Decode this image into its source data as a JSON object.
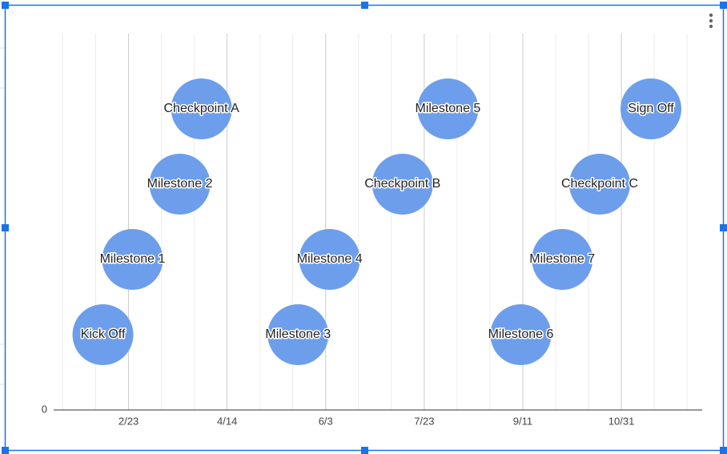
{
  "chart_data": {
    "type": "bubble",
    "x": [
      41,
      56,
      80,
      91,
      140,
      156,
      193,
      216,
      253,
      274,
      293,
      319
    ],
    "values": [
      1,
      2,
      3,
      4,
      1,
      2,
      3,
      4,
      1,
      2,
      3,
      4
    ],
    "labels": [
      "Kick Off",
      "Milestone 1",
      "Milestone 2",
      "Checkpoint A",
      "Milestone 3",
      "Milestone 4",
      "Checkpoint B",
      "Milestone 5",
      "Milestone 6",
      "Milestone 7",
      "Checkpoint C",
      "Sign Off"
    ],
    "color": "#6d9eeb",
    "xlim": [
      16,
      345
    ],
    "xticks": [
      {
        "value": 54,
        "label": "2/23"
      },
      {
        "value": 104,
        "label": "4/14"
      },
      {
        "value": 154,
        "label": "6/3"
      },
      {
        "value": 204,
        "label": "7/23"
      },
      {
        "value": 254,
        "label": "9/11"
      },
      {
        "value": 304,
        "label": "10/31"
      }
    ],
    "ylim": [
      0,
      5
    ],
    "yticks": [
      0
    ],
    "grid": true
  }
}
